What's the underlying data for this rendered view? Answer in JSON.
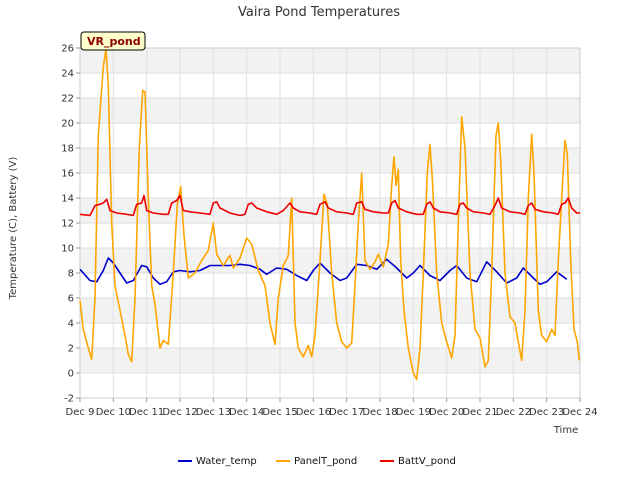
{
  "chart_data": {
    "type": "line",
    "title": "Vaira Pond Temperatures",
    "station_label": "VR_pond",
    "xlabel": "Time",
    "ylabel": "Temperature (C), Battery (V)",
    "xlim": [
      9,
      24
    ],
    "ylim": [
      -2,
      26
    ],
    "x_ticks": [
      9,
      10,
      11,
      12,
      13,
      14,
      15,
      16,
      17,
      18,
      19,
      20,
      21,
      22,
      23,
      24
    ],
    "x_tick_labels": [
      "Dec 9",
      "Dec 10",
      "Dec 11",
      "Dec 12",
      "Dec 13",
      "Dec 14",
      "Dec 15",
      "Dec 16",
      "Dec 17",
      "Dec 18",
      "Dec 19",
      "Dec 20",
      "Dec 21",
      "Dec 22",
      "Dec 23",
      "Dec 24"
    ],
    "y_ticks": [
      -2,
      0,
      2,
      4,
      6,
      8,
      10,
      12,
      14,
      16,
      18,
      20,
      22,
      24,
      26
    ],
    "y_tick_labels": [
      "-2",
      "0",
      "2",
      "4",
      "6",
      "8",
      "10",
      "12",
      "14",
      "16",
      "18",
      "20",
      "22",
      "24",
      "26"
    ],
    "grid": true,
    "legend_position": "bottom",
    "series": [
      {
        "name": "Water_temp",
        "color": "#0000cc",
        "points": [
          [
            9.0,
            8.3
          ],
          [
            9.3,
            7.4
          ],
          [
            9.5,
            7.3
          ],
          [
            9.7,
            8.2
          ],
          [
            9.85,
            9.2
          ],
          [
            10.0,
            8.8
          ],
          [
            10.2,
            8.0
          ],
          [
            10.4,
            7.2
          ],
          [
            10.6,
            7.4
          ],
          [
            10.85,
            8.6
          ],
          [
            11.0,
            8.5
          ],
          [
            11.2,
            7.6
          ],
          [
            11.4,
            7.1
          ],
          [
            11.6,
            7.3
          ],
          [
            11.8,
            8.1
          ],
          [
            12.0,
            8.2
          ],
          [
            12.3,
            8.1
          ],
          [
            12.6,
            8.2
          ],
          [
            12.9,
            8.6
          ],
          [
            13.2,
            8.6
          ],
          [
            13.5,
            8.6
          ],
          [
            13.8,
            8.7
          ],
          [
            14.1,
            8.6
          ],
          [
            14.4,
            8.3
          ],
          [
            14.6,
            7.9
          ],
          [
            14.9,
            8.4
          ],
          [
            15.2,
            8.3
          ],
          [
            15.5,
            7.8
          ],
          [
            15.8,
            7.4
          ],
          [
            16.0,
            8.2
          ],
          [
            16.2,
            8.8
          ],
          [
            16.5,
            8.0
          ],
          [
            16.8,
            7.4
          ],
          [
            17.0,
            7.6
          ],
          [
            17.3,
            8.7
          ],
          [
            17.6,
            8.6
          ],
          [
            17.9,
            8.3
          ],
          [
            18.2,
            9.1
          ],
          [
            18.5,
            8.4
          ],
          [
            18.8,
            7.6
          ],
          [
            19.0,
            8.0
          ],
          [
            19.2,
            8.6
          ],
          [
            19.5,
            7.8
          ],
          [
            19.8,
            7.4
          ],
          [
            20.1,
            8.2
          ],
          [
            20.3,
            8.6
          ],
          [
            20.6,
            7.6
          ],
          [
            20.9,
            7.3
          ],
          [
            21.2,
            8.9
          ],
          [
            21.5,
            8.1
          ],
          [
            21.8,
            7.2
          ],
          [
            22.1,
            7.6
          ],
          [
            22.3,
            8.4
          ],
          [
            22.6,
            7.6
          ],
          [
            22.8,
            7.1
          ],
          [
            23.0,
            7.3
          ],
          [
            23.3,
            8.1
          ],
          [
            23.6,
            7.5
          ]
        ]
      },
      {
        "name": "PanelT_pond",
        "color": "#ffa500",
        "points": [
          [
            9.0,
            5.8
          ],
          [
            9.1,
            3.5
          ],
          [
            9.25,
            2.0
          ],
          [
            9.35,
            1.1
          ],
          [
            9.45,
            6.0
          ],
          [
            9.55,
            19.0
          ],
          [
            9.7,
            24.5
          ],
          [
            9.78,
            25.9
          ],
          [
            9.85,
            23.0
          ],
          [
            9.95,
            12.0
          ],
          [
            10.05,
            7.0
          ],
          [
            10.2,
            5.0
          ],
          [
            10.35,
            3.0
          ],
          [
            10.45,
            1.5
          ],
          [
            10.55,
            0.9
          ],
          [
            10.65,
            6.0
          ],
          [
            10.78,
            18.0
          ],
          [
            10.88,
            22.6
          ],
          [
            10.95,
            22.5
          ],
          [
            11.05,
            14.0
          ],
          [
            11.15,
            7.0
          ],
          [
            11.25,
            5.5
          ],
          [
            11.4,
            2.0
          ],
          [
            11.5,
            2.6
          ],
          [
            11.65,
            2.3
          ],
          [
            11.8,
            8.0
          ],
          [
            11.92,
            13.5
          ],
          [
            12.02,
            14.9
          ],
          [
            12.12,
            11.0
          ],
          [
            12.25,
            7.6
          ],
          [
            12.45,
            8.0
          ],
          [
            12.65,
            9.0
          ],
          [
            12.85,
            9.8
          ],
          [
            13.0,
            12.0
          ],
          [
            13.1,
            9.5
          ],
          [
            13.3,
            8.6
          ],
          [
            13.5,
            9.4
          ],
          [
            13.6,
            8.4
          ],
          [
            13.8,
            9.2
          ],
          [
            14.0,
            10.8
          ],
          [
            14.15,
            10.3
          ],
          [
            14.35,
            8.2
          ],
          [
            14.55,
            7.0
          ],
          [
            14.7,
            4.0
          ],
          [
            14.85,
            2.3
          ],
          [
            14.95,
            6.0
          ],
          [
            15.1,
            8.6
          ],
          [
            15.25,
            9.4
          ],
          [
            15.35,
            14.0
          ],
          [
            15.45,
            4.0
          ],
          [
            15.55,
            2.0
          ],
          [
            15.7,
            1.3
          ],
          [
            15.85,
            2.2
          ],
          [
            15.95,
            1.3
          ],
          [
            16.05,
            3.0
          ],
          [
            16.2,
            9.0
          ],
          [
            16.32,
            14.3
          ],
          [
            16.42,
            13.5
          ],
          [
            16.55,
            8.0
          ],
          [
            16.7,
            4.0
          ],
          [
            16.85,
            2.5
          ],
          [
            17.0,
            2.0
          ],
          [
            17.15,
            2.4
          ],
          [
            17.25,
            7.0
          ],
          [
            17.35,
            12.0
          ],
          [
            17.45,
            16.0
          ],
          [
            17.55,
            9.0
          ],
          [
            17.7,
            8.3
          ],
          [
            17.85,
            8.9
          ],
          [
            17.95,
            9.5
          ],
          [
            18.1,
            8.5
          ],
          [
            18.25,
            10.3
          ],
          [
            18.35,
            15.0
          ],
          [
            18.42,
            17.3
          ],
          [
            18.48,
            15.0
          ],
          [
            18.55,
            16.3
          ],
          [
            18.62,
            9.0
          ],
          [
            18.72,
            5.0
          ],
          [
            18.85,
            2.0
          ],
          [
            19.0,
            0.0
          ],
          [
            19.1,
            -0.5
          ],
          [
            19.2,
            2.0
          ],
          [
            19.3,
            8.0
          ],
          [
            19.42,
            16.0
          ],
          [
            19.5,
            18.3
          ],
          [
            19.58,
            15.0
          ],
          [
            19.7,
            8.0
          ],
          [
            19.85,
            4.0
          ],
          [
            20.0,
            2.5
          ],
          [
            20.15,
            1.2
          ],
          [
            20.25,
            3.0
          ],
          [
            20.35,
            12.0
          ],
          [
            20.45,
            20.5
          ],
          [
            20.55,
            18.0
          ],
          [
            20.7,
            8.0
          ],
          [
            20.85,
            3.5
          ],
          [
            21.0,
            2.8
          ],
          [
            21.15,
            0.5
          ],
          [
            21.25,
            1.0
          ],
          [
            21.35,
            8.0
          ],
          [
            21.48,
            19.0
          ],
          [
            21.55,
            20.0
          ],
          [
            21.62,
            17.0
          ],
          [
            21.75,
            8.0
          ],
          [
            21.9,
            4.5
          ],
          [
            22.05,
            4.0
          ],
          [
            22.15,
            2.5
          ],
          [
            22.25,
            1.0
          ],
          [
            22.35,
            5.0
          ],
          [
            22.45,
            14.0
          ],
          [
            22.55,
            19.1
          ],
          [
            22.62,
            16.0
          ],
          [
            22.75,
            5.0
          ],
          [
            22.85,
            3.0
          ],
          [
            23.0,
            2.5
          ],
          [
            23.15,
            3.5
          ],
          [
            23.25,
            3.0
          ],
          [
            23.35,
            9.0
          ],
          [
            23.45,
            14.0
          ],
          [
            23.55,
            18.6
          ],
          [
            23.62,
            17.5
          ],
          [
            23.72,
            9.0
          ],
          [
            23.82,
            3.5
          ],
          [
            23.92,
            2.5
          ],
          [
            23.98,
            1.0
          ]
        ]
      },
      {
        "name": "BattV_pond",
        "color": "#ee0000",
        "points": [
          [
            9.0,
            12.7
          ],
          [
            9.3,
            12.6
          ],
          [
            9.45,
            13.4
          ],
          [
            9.6,
            13.5
          ],
          [
            9.7,
            13.6
          ],
          [
            9.8,
            13.9
          ],
          [
            9.9,
            13.0
          ],
          [
            10.1,
            12.8
          ],
          [
            10.4,
            12.7
          ],
          [
            10.6,
            12.6
          ],
          [
            10.7,
            13.5
          ],
          [
            10.85,
            13.6
          ],
          [
            10.92,
            14.2
          ],
          [
            11.0,
            13.0
          ],
          [
            11.2,
            12.8
          ],
          [
            11.5,
            12.7
          ],
          [
            11.65,
            12.7
          ],
          [
            11.75,
            13.6
          ],
          [
            11.9,
            13.8
          ],
          [
            12.0,
            14.2
          ],
          [
            12.1,
            13.0
          ],
          [
            12.3,
            12.9
          ],
          [
            12.6,
            12.8
          ],
          [
            12.9,
            12.7
          ],
          [
            13.0,
            13.6
          ],
          [
            13.1,
            13.7
          ],
          [
            13.2,
            13.2
          ],
          [
            13.5,
            12.8
          ],
          [
            13.8,
            12.6
          ],
          [
            13.95,
            12.7
          ],
          [
            14.05,
            13.5
          ],
          [
            14.15,
            13.6
          ],
          [
            14.3,
            13.2
          ],
          [
            14.6,
            12.9
          ],
          [
            14.9,
            12.7
          ],
          [
            15.1,
            13.0
          ],
          [
            15.3,
            13.6
          ],
          [
            15.4,
            13.2
          ],
          [
            15.6,
            12.9
          ],
          [
            15.9,
            12.8
          ],
          [
            16.1,
            12.7
          ],
          [
            16.2,
            13.5
          ],
          [
            16.35,
            13.7
          ],
          [
            16.45,
            13.2
          ],
          [
            16.7,
            12.9
          ],
          [
            17.0,
            12.8
          ],
          [
            17.2,
            12.7
          ],
          [
            17.3,
            13.6
          ],
          [
            17.45,
            13.7
          ],
          [
            17.55,
            13.1
          ],
          [
            17.8,
            12.9
          ],
          [
            18.1,
            12.8
          ],
          [
            18.25,
            12.8
          ],
          [
            18.35,
            13.6
          ],
          [
            18.45,
            13.8
          ],
          [
            18.55,
            13.2
          ],
          [
            18.8,
            12.9
          ],
          [
            19.1,
            12.7
          ],
          [
            19.3,
            12.7
          ],
          [
            19.4,
            13.5
          ],
          [
            19.5,
            13.7
          ],
          [
            19.6,
            13.2
          ],
          [
            19.8,
            12.9
          ],
          [
            20.1,
            12.8
          ],
          [
            20.3,
            12.7
          ],
          [
            20.4,
            13.5
          ],
          [
            20.5,
            13.6
          ],
          [
            20.6,
            13.2
          ],
          [
            20.8,
            12.9
          ],
          [
            21.1,
            12.8
          ],
          [
            21.3,
            12.7
          ],
          [
            21.45,
            13.4
          ],
          [
            21.55,
            14.0
          ],
          [
            21.65,
            13.2
          ],
          [
            21.9,
            12.9
          ],
          [
            22.2,
            12.8
          ],
          [
            22.35,
            12.7
          ],
          [
            22.45,
            13.4
          ],
          [
            22.55,
            13.6
          ],
          [
            22.65,
            13.1
          ],
          [
            22.9,
            12.9
          ],
          [
            23.2,
            12.8
          ],
          [
            23.35,
            12.7
          ],
          [
            23.45,
            13.5
          ],
          [
            23.55,
            13.6
          ],
          [
            23.65,
            14.0
          ],
          [
            23.75,
            13.2
          ],
          [
            23.9,
            12.8
          ],
          [
            24.0,
            12.8
          ]
        ]
      }
    ]
  }
}
